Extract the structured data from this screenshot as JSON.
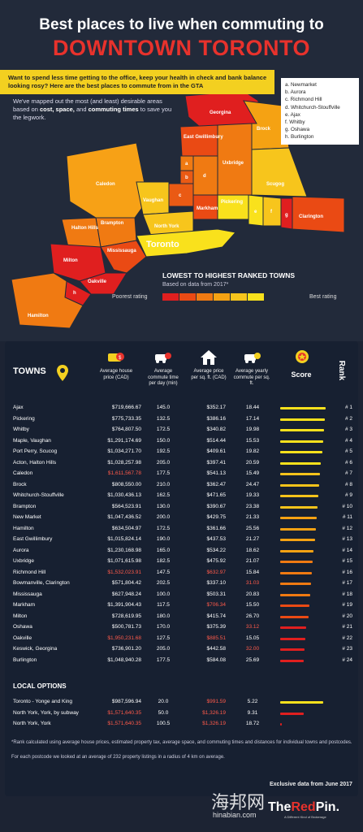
{
  "header": {
    "title_line1": "Best places to live when commuting to",
    "title_line2": "DOWNTOWN TORONTO",
    "intro": "Want to spend less time getting to the office, keep your health in check and bank balance looking rosy? Here are the best places to commute from in the GTA",
    "desc_pre": "We've mapped out the most (and least) desirable areas based on ",
    "desc_b1": "cost, space,",
    "desc_mid": " and ",
    "desc_b2": "commuting times",
    "desc_post": " to save you the legwork."
  },
  "legend": [
    "a. Newmarket",
    "b. Aurora",
    "c. Richmond Hill",
    "d. Whitchurch-Stouffville",
    "e. Ajax",
    "f. Whitby",
    "g. Oshawa",
    "h. Burlington"
  ],
  "map": {
    "labels": [
      "Georgina",
      "Brock",
      "East Gwillimbury",
      "Uxbridge",
      "Caledon",
      "Scugog",
      "Vaughan",
      "Markham",
      "Pickering",
      "Clarington",
      "Brampton",
      "North York",
      "Halton Hills",
      "Toronto",
      "Mississauga",
      "Milton",
      "Oakville",
      "Hamilton",
      "a",
      "b",
      "c",
      "d",
      "e",
      "f",
      "g",
      "h"
    ]
  },
  "scale": {
    "title": "LOWEST TO HIGHEST RANKED TOWNS",
    "subtitle": "Based on data from 2017*",
    "poor": "Poorest rating",
    "best": "Best rating",
    "colors": [
      "#e01f1f",
      "#ea4a14",
      "#f07a12",
      "#f5a213",
      "#f7c51c",
      "#f9e11c"
    ]
  },
  "table": {
    "headers": {
      "towns": "TOWNS",
      "price": "Average house price (CAD)",
      "time": "Average commute time per day (min)",
      "sqft": "Average price per sq. ft. (CAD)",
      "cost": "Average yearly commute per sq. ft.",
      "score": "Score",
      "rank": "Rank"
    },
    "rows": [
      {
        "town": "Ajax",
        "price": "$719,666.67",
        "time": "145.0",
        "sqft": "$352.17",
        "cost": "18.44",
        "rank": "# 1",
        "score": 1.0
      },
      {
        "town": "Pickering",
        "price": "$775,733.35",
        "time": "132.5",
        "sqft": "$386.16",
        "cost": "17.14",
        "rank": "# 2",
        "score": 0.98
      },
      {
        "town": "Whitby",
        "price": "$764,807.50",
        "time": "172.5",
        "sqft": "$340.82",
        "cost": "19.98",
        "rank": "# 3",
        "score": 0.96
      },
      {
        "town": "Maple, Vaughan",
        "price": "$1,291,174.69",
        "time": "150.0",
        "sqft": "$514.44",
        "cost": "15.53",
        "rank": "# 4",
        "score": 0.94
      },
      {
        "town": "Port Perry, Scucog",
        "price": "$1,034,271.70",
        "time": "192.5",
        "sqft": "$409.61",
        "cost": "19.82",
        "rank": "# 5",
        "score": 0.92
      },
      {
        "town": "Acton, Halton Hills",
        "price": "$1,028,257.98",
        "time": "205.0",
        "sqft": "$397.41",
        "cost": "20.59",
        "rank": "# 6",
        "score": 0.9
      },
      {
        "town": "Caledon",
        "price": "$1,611,567.78",
        "time": "177.5",
        "sqft": "$541.13",
        "cost": "15.49",
        "rank": "# 7",
        "score": 0.88
      },
      {
        "town": "Brock",
        "price": "$808,550.00",
        "time": "210.0",
        "sqft": "$362.47",
        "cost": "24.47",
        "rank": "# 8",
        "score": 0.86
      },
      {
        "town": "Whitchurch-Stouffville",
        "price": "$1,030,436.13",
        "time": "162.5",
        "sqft": "$471.65",
        "cost": "19.33",
        "rank": "# 9",
        "score": 0.84
      },
      {
        "town": "Brampton",
        "price": "$564,523.91",
        "time": "130.0",
        "sqft": "$390.67",
        "cost": "23.38",
        "rank": "# 10",
        "score": 0.82
      },
      {
        "town": "New Market",
        "price": "$1,047,436.52",
        "time": "200.0",
        "sqft": "$429.75",
        "cost": "21.33",
        "rank": "# 11",
        "score": 0.8
      },
      {
        "town": "Hamilton",
        "price": "$634,504.97",
        "time": "172.5",
        "sqft": "$361.66",
        "cost": "25.56",
        "rank": "# 12",
        "score": 0.78
      },
      {
        "town": "East Gwillimbury",
        "price": "$1,015,824.14",
        "time": "190.0",
        "sqft": "$437.53",
        "cost": "21.27",
        "rank": "# 13",
        "score": 0.76
      },
      {
        "town": "Aurora",
        "price": "$1,230,168.98",
        "time": "165.0",
        "sqft": "$534.22",
        "cost": "18.62",
        "rank": "# 14",
        "score": 0.74
      },
      {
        "town": "Uxbridge",
        "price": "$1,071,615.98",
        "time": "182.5",
        "sqft": "$475.92",
        "cost": "21.07",
        "rank": "# 15",
        "score": 0.72
      },
      {
        "town": "Richmond Hill",
        "price": "$1,532,023.91",
        "time": "147.5",
        "sqft": "$632.97",
        "cost": "15.84",
        "rank": "# 16",
        "score": 0.7
      },
      {
        "town": "Bowmanville, Clarington",
        "price": "$571,804.42",
        "time": "202.5",
        "sqft": "$337.10",
        "cost": "31.03",
        "rank": "# 17",
        "score": 0.68
      },
      {
        "town": "Mississauga",
        "price": "$627,948.24",
        "time": "100.0",
        "sqft": "$503.31",
        "cost": "20.83",
        "rank": "# 18",
        "score": 0.66
      },
      {
        "town": "Markham",
        "price": "$1,391,904.43",
        "time": "117.5",
        "sqft": "$706.34",
        "cost": "15.50",
        "rank": "# 19",
        "score": 0.64
      },
      {
        "town": "Milton",
        "price": "$728,619.95",
        "time": "180.0",
        "sqft": "$415.74",
        "cost": "26.70",
        "rank": "# 20",
        "score": 0.62
      },
      {
        "town": "Oshawa",
        "price": "$500,781.73",
        "time": "170.0",
        "sqft": "$375.39",
        "cost": "33.12",
        "rank": "# 21",
        "score": 0.58
      },
      {
        "town": "Oakville",
        "price": "$1,950,231.68",
        "time": "127.5",
        "sqft": "$885.51",
        "cost": "15.05",
        "rank": "# 22",
        "score": 0.56
      },
      {
        "town": "Keswick, Georgina",
        "price": "$736,901.20",
        "time": "205.0",
        "sqft": "$442.58",
        "cost": "32.00",
        "rank": "# 23",
        "score": 0.54
      },
      {
        "town": "Burlington",
        "price": "$1,048,940.28",
        "time": "177.5",
        "sqft": "$584.08",
        "cost": "25.69",
        "rank": "# 24",
        "score": 0.52
      }
    ],
    "local_title": "LOCAL OPTIONS",
    "local_rows": [
      {
        "town": "Toronto - Yonge and King",
        "price": "$987,596.94",
        "time": "20.0",
        "sqft": "$991.59",
        "cost": "5.22",
        "score": 0.95
      },
      {
        "town": "North York, York, by subway",
        "price": "$1,571,640.35",
        "time": "50.0",
        "sqft": "$1,326.19",
        "cost": "9.31",
        "score": 0.52
      },
      {
        "town": "North York, York",
        "price": "$1,571,640.35",
        "time": "100.5",
        "sqft": "$1,326.19",
        "cost": "18.72",
        "score": 0.04
      }
    ]
  },
  "footnote1": "*Rank calculated using average house prices, estimated property tax, average space, and commuting times and distances for individual towns and postcodes.",
  "footnote2": "For each postcode we looked at an average of 232 property listings in a radius of 4 km on average.",
  "exclusive": "Exclusive data from June 2017",
  "brand": {
    "pre": "The",
    "red": "Red",
    "post": "Pin.",
    "tag": "A Different Kind of Brokerage"
  },
  "watermark": {
    "cn": "海邦网",
    "url": "hinabian.com"
  }
}
